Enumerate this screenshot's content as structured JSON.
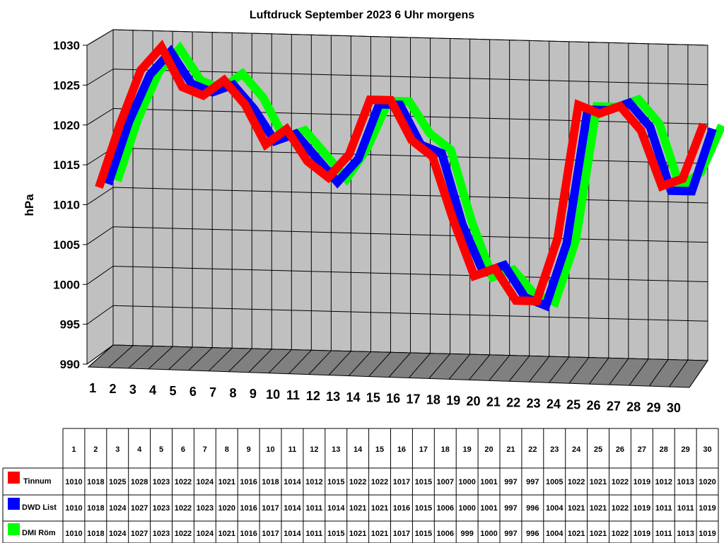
{
  "chart_data": {
    "type": "line",
    "title": "Luftdruck September 2023 6 Uhr morgens",
    "ylabel": "hPa",
    "xlabel": "",
    "ylim": [
      990,
      1030
    ],
    "yticks": [
      990,
      995,
      1000,
      1005,
      1010,
      1015,
      1020,
      1025,
      1030
    ],
    "categories": [
      "1",
      "2",
      "3",
      "4",
      "5",
      "6",
      "7",
      "8",
      "9",
      "10",
      "11",
      "12",
      "13",
      "14",
      "15",
      "16",
      "17",
      "18",
      "19",
      "20",
      "21",
      "22",
      "23",
      "24",
      "25",
      "26",
      "27",
      "28",
      "29",
      "30"
    ],
    "grid": true,
    "three_d": true,
    "legend": "table-below",
    "series": [
      {
        "name": "Tinnum",
        "color": "#ff0000",
        "values": [
          1010,
          1018,
          1025,
          1028,
          1023,
          1022,
          1024,
          1021,
          1016,
          1018,
          1014,
          1012,
          1015,
          1022,
          1022,
          1017,
          1015,
          1007,
          1000,
          1001,
          997,
          997,
          1005,
          1022,
          1021,
          1022,
          1019,
          1012,
          1013,
          1020
        ]
      },
      {
        "name": "DWD List",
        "color": "#0000ff",
        "values": [
          1010,
          1018,
          1024,
          1027,
          1023,
          1022,
          1023,
          1020,
          1016,
          1017,
          1014,
          1011,
          1014,
          1021,
          1021,
          1016,
          1015,
          1006,
          1000,
          1001,
          997,
          996,
          1004,
          1021,
          1021,
          1022,
          1019,
          1011,
          1011,
          1019
        ]
      },
      {
        "name": "DMI Röm",
        "color": "#00ff00",
        "values": [
          1010,
          1018,
          1024,
          1027,
          1023,
          1022,
          1024,
          1021,
          1016,
          1017,
          1014,
          1011,
          1015,
          1021,
          1021,
          1017,
          1015,
          1006,
          999,
          1000,
          997,
          996,
          1004,
          1021,
          1021,
          1022,
          1019,
          1011,
          1013,
          1019
        ]
      }
    ]
  },
  "colors": {
    "wall": "#c0c0c0",
    "floor": "#808080",
    "grid": "#000000"
  }
}
